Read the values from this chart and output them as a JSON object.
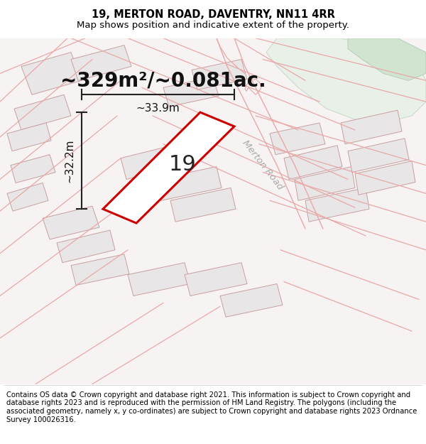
{
  "title_line1": "19, MERTON ROAD, DAVENTRY, NN11 4RR",
  "title_line2": "Map shows position and indicative extent of the property.",
  "area_text": "~329m²/~0.081ac.",
  "label_width": "~33.9m",
  "label_height": "~32.2m",
  "property_number": "19",
  "road_label": "Merton Road",
  "footer_text": "Contains OS data © Crown copyright and database right 2021. This information is subject to Crown copyright and database rights 2023 and is reproduced with the permission of HM Land Registry. The polygons (including the associated geometry, namely x, y co-ordinates) are subject to Crown copyright and database rights 2023 Ordnance Survey 100026316.",
  "map_bg": "#f7f3f3",
  "plot_border_color": "#cc0000",
  "building_face": "#e8e6e6",
  "building_edge": "#c8a0a0",
  "road_line_color": "#e8a8a8",
  "green_area_color": "#ddeedd",
  "dim_line_color": "#222222",
  "title_fontsize": 10.5,
  "subtitle_fontsize": 9.5,
  "area_fontsize": 20,
  "number_fontsize": 22,
  "dim_fontsize": 11,
  "road_fontsize": 9.5,
  "footer_fontsize": 7.2
}
